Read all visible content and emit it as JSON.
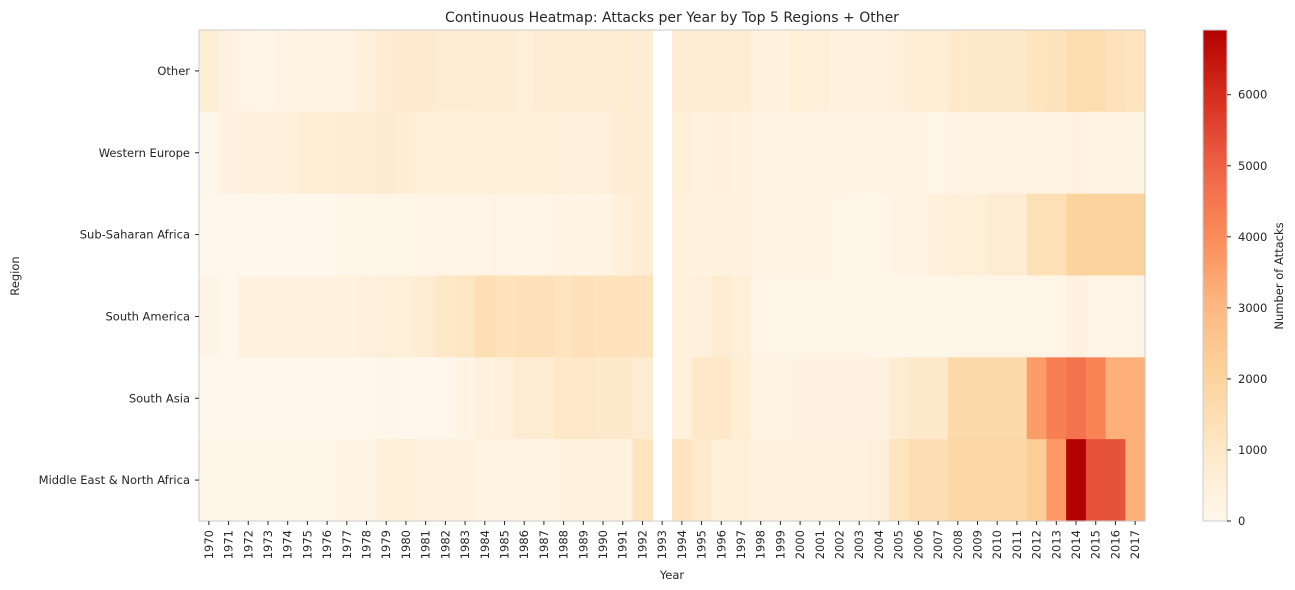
{
  "chart_data": {
    "type": "heatmap",
    "title": "Continuous Heatmap: Attacks per Year by Top 5 Regions + Other",
    "xlabel": "Year",
    "ylabel": "Region",
    "colorbar_label": "Number of Attacks",
    "colormap": "OrRd",
    "color_range": [
      0,
      6911
    ],
    "colorbar_ticks": [
      0,
      1000,
      2000,
      3000,
      4000,
      5000,
      6000
    ],
    "grid": false,
    "years": [
      1970,
      1971,
      1972,
      1973,
      1974,
      1975,
      1976,
      1977,
      1978,
      1979,
      1980,
      1981,
      1982,
      1983,
      1984,
      1985,
      1986,
      1987,
      1988,
      1989,
      1990,
      1991,
      1992,
      1993,
      1994,
      1995,
      1996,
      1997,
      1998,
      1999,
      2000,
      2001,
      2002,
      2003,
      2004,
      2005,
      2006,
      2007,
      2008,
      2009,
      2010,
      2011,
      2012,
      2013,
      2014,
      2015,
      2016,
      2017
    ],
    "series": [
      {
        "name": "Other",
        "values": [
          600,
          300,
          200,
          150,
          250,
          250,
          250,
          250,
          450,
          700,
          800,
          800,
          700,
          700,
          650,
          650,
          500,
          650,
          650,
          650,
          650,
          750,
          650,
          null,
          650,
          650,
          650,
          650,
          350,
          350,
          550,
          550,
          350,
          350,
          350,
          500,
          600,
          600,
          950,
          950,
          950,
          950,
          1200,
          1300,
          1550,
          1550,
          1300,
          1200
        ]
      },
      {
        "name": "Western Europe",
        "values": [
          50,
          300,
          450,
          450,
          500,
          600,
          600,
          700,
          700,
          800,
          650,
          550,
          550,
          550,
          550,
          550,
          550,
          550,
          500,
          500,
          500,
          650,
          650,
          null,
          550,
          350,
          450,
          350,
          250,
          250,
          250,
          250,
          250,
          250,
          250,
          250,
          250,
          150,
          250,
          250,
          250,
          250,
          250,
          250,
          300,
          250,
          250,
          250
        ]
      },
      {
        "name": "Sub-Saharan Africa",
        "values": [
          0,
          0,
          0,
          0,
          0,
          0,
          0,
          100,
          100,
          150,
          150,
          200,
          200,
          200,
          200,
          200,
          200,
          200,
          250,
          250,
          250,
          450,
          650,
          null,
          400,
          350,
          350,
          350,
          250,
          250,
          250,
          250,
          150,
          100,
          50,
          250,
          250,
          450,
          550,
          550,
          700,
          700,
          1400,
          1400,
          2000,
          2000,
          2000,
          2000
        ]
      },
      {
        "name": "South America",
        "values": [
          200,
          0,
          350,
          350,
          350,
          350,
          350,
          350,
          450,
          500,
          550,
          700,
          1000,
          1100,
          1450,
          1250,
          1350,
          1350,
          1200,
          1350,
          1250,
          1250,
          1250,
          null,
          400,
          450,
          700,
          550,
          150,
          150,
          150,
          150,
          150,
          150,
          50,
          50,
          50,
          50,
          150,
          150,
          150,
          150,
          150,
          150,
          300,
          200,
          200,
          200
        ]
      },
      {
        "name": "South Asia",
        "values": [
          0,
          0,
          0,
          0,
          0,
          0,
          0,
          0,
          0,
          100,
          0,
          0,
          0,
          200,
          400,
          500,
          700,
          700,
          1000,
          1000,
          900,
          900,
          700,
          null,
          400,
          1000,
          1000,
          600,
          250,
          250,
          300,
          300,
          300,
          300,
          300,
          700,
          900,
          900,
          1700,
          1700,
          1700,
          1700,
          3600,
          4300,
          4600,
          4200,
          3200,
          3200
        ]
      },
      {
        "name": "Middle East & North Africa",
        "values": [
          150,
          150,
          100,
          50,
          50,
          50,
          150,
          250,
          250,
          550,
          550,
          400,
          400,
          400,
          250,
          250,
          250,
          250,
          350,
          350,
          350,
          350,
          1200,
          null,
          1200,
          800,
          550,
          550,
          350,
          350,
          350,
          350,
          350,
          350,
          550,
          1200,
          1500,
          1500,
          1800,
          1800,
          1800,
          1800,
          2200,
          3700,
          6911,
          5300,
          5300,
          3200
        ]
      }
    ]
  }
}
